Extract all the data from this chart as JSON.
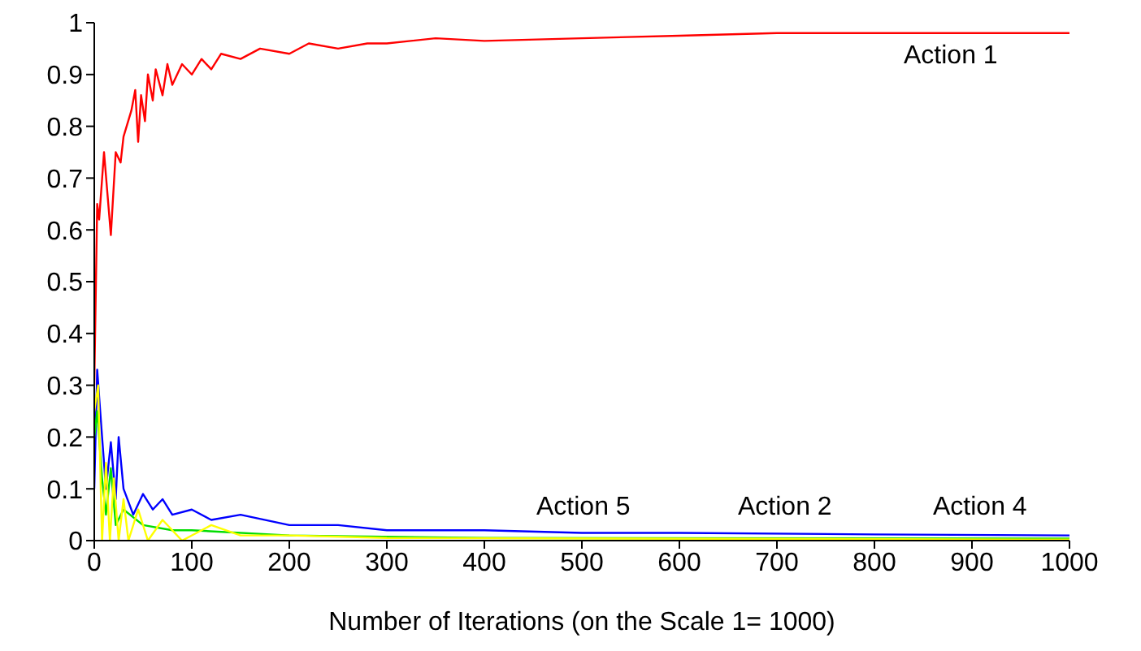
{
  "chart_data": {
    "type": "line",
    "xlabel": "Number of Iterations (on the Scale 1= 1000)",
    "xlim": [
      0,
      1000
    ],
    "xticks": [
      0,
      100,
      200,
      300,
      400,
      500,
      600,
      700,
      800,
      900,
      1000
    ],
    "ylim": [
      0,
      1
    ],
    "yticks": [
      0,
      0.1,
      0.2,
      0.3,
      0.4,
      0.5,
      0.6,
      0.7,
      0.8,
      0.9,
      1
    ],
    "grid": false,
    "marker": "none",
    "line_style": "solid",
    "series": [
      {
        "color": "#ff0000",
        "x": [
          0,
          3,
          5,
          10,
          17,
          22,
          27,
          30,
          38,
          42,
          45,
          48,
          52,
          55,
          60,
          63,
          70,
          75,
          80,
          90,
          100,
          110,
          120,
          130,
          150,
          170,
          200,
          220,
          250,
          280,
          300,
          350,
          400,
          500,
          600,
          700,
          800,
          900,
          1000
        ],
        "values": [
          0.3,
          0.65,
          0.62,
          0.75,
          0.59,
          0.75,
          0.73,
          0.78,
          0.83,
          0.87,
          0.77,
          0.86,
          0.81,
          0.9,
          0.85,
          0.91,
          0.86,
          0.92,
          0.88,
          0.92,
          0.9,
          0.93,
          0.91,
          0.94,
          0.93,
          0.95,
          0.94,
          0.96,
          0.95,
          0.96,
          0.96,
          0.97,
          0.965,
          0.97,
          0.975,
          0.98,
          0.98,
          0.98,
          0.98
        ]
      },
      {
        "color": "#0000ff",
        "x": [
          0,
          3,
          8,
          12,
          17,
          22,
          25,
          30,
          40,
          50,
          60,
          70,
          80,
          100,
          120,
          150,
          200,
          250,
          300,
          400,
          500,
          600,
          800,
          1000
        ],
        "values": [
          0.1,
          0.33,
          0.2,
          0.1,
          0.19,
          0.08,
          0.2,
          0.1,
          0.05,
          0.09,
          0.06,
          0.08,
          0.05,
          0.06,
          0.04,
          0.05,
          0.03,
          0.03,
          0.02,
          0.02,
          0.015,
          0.015,
          0.012,
          0.01
        ]
      },
      {
        "color": "#00dd00",
        "x": [
          0,
          3,
          8,
          12,
          17,
          22,
          30,
          50,
          80,
          100,
          200,
          400,
          1000
        ],
        "values": [
          0.2,
          0.25,
          0.12,
          0.05,
          0.14,
          0.03,
          0.06,
          0.03,
          0.02,
          0.02,
          0.01,
          0.005,
          0.004
        ]
      },
      {
        "color": "#ffff00",
        "x": [
          0,
          4,
          8,
          12,
          16,
          20,
          25,
          30,
          35,
          45,
          55,
          70,
          90,
          120,
          150,
          200,
          300,
          1000
        ],
        "values": [
          0.25,
          0.3,
          0,
          0.15,
          0,
          0.12,
          0,
          0.08,
          0,
          0.06,
          0,
          0.04,
          0,
          0.03,
          0.01,
          0.01,
          0.005,
          0.002
        ]
      }
    ],
    "annotations": [
      "Action 1",
      "Action 5",
      "Action 2",
      "Action 4"
    ]
  }
}
